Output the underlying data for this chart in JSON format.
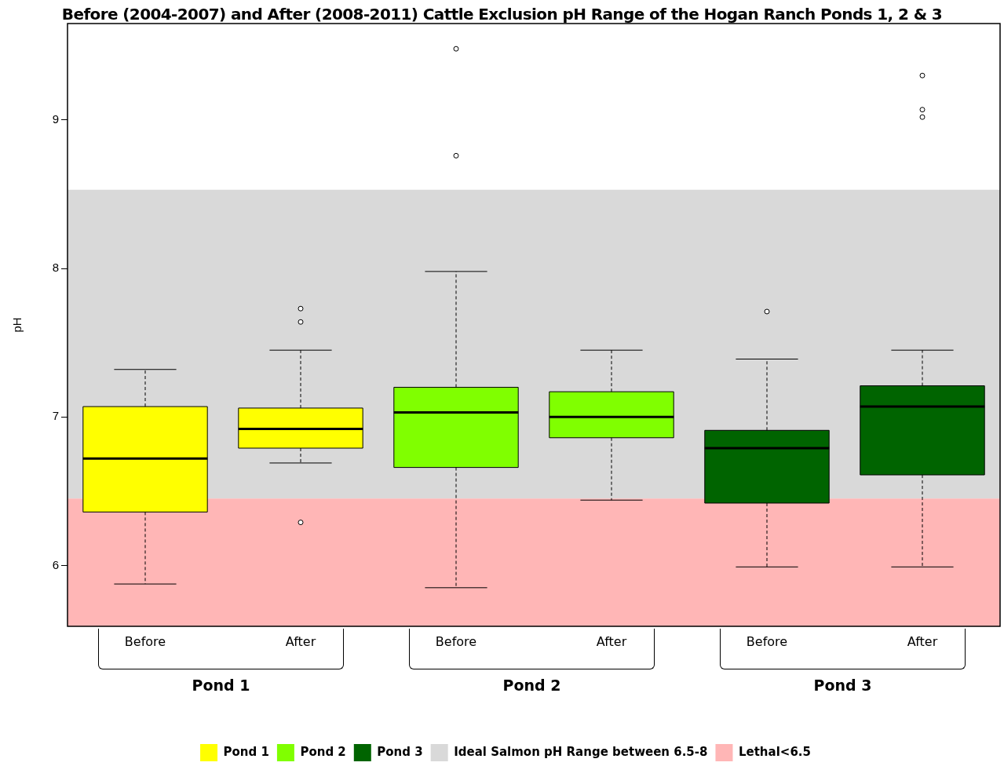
{
  "chart_data": {
    "type": "box",
    "title": "Before (2004-2007) and After (2008-2011) Cattle Exclusion pH Range of the Hogan Ranch Ponds 1, 2 & 3",
    "ylabel": "pH",
    "categories": [
      "Before",
      "After",
      "Before",
      "After",
      "Before",
      "After"
    ],
    "annotations": [
      "Pond 1",
      "Pond 2",
      "Pond 3"
    ],
    "ylim": [
      5.59,
      9.65
    ],
    "yticks": [
      6,
      7,
      8,
      9
    ],
    "grid": false,
    "legend": "bottom",
    "bands": [
      {
        "axis": "y",
        "from": 6.45,
        "to": 8.53,
        "label": "Ideal Salmon pH Range between 6.5-8",
        "color": "#d9d9d9"
      },
      {
        "axis": "y",
        "from": 5.59,
        "to": 6.45,
        "label": "Lethal<6.5",
        "color": "#ffb6b6"
      }
    ],
    "series": [
      {
        "name": "Pond 1",
        "color": "#ffff00",
        "boxes": [
          {
            "low": 5.875,
            "q1": 6.36,
            "median": 6.72,
            "q3": 7.07,
            "high": 7.32
          },
          {
            "low": 6.69,
            "q1": 6.79,
            "median": 6.92,
            "q3": 7.06,
            "high": 7.45,
            "outliers": [
              7.73,
              7.64,
              6.29
            ]
          },
          null,
          null,
          null,
          null
        ]
      },
      {
        "name": "Pond 2",
        "color": "#80ff00",
        "boxes": [
          null,
          null,
          {
            "low": 5.85,
            "q1": 6.66,
            "median": 7.03,
            "q3": 7.2,
            "high": 7.98,
            "outliers": [
              9.48,
              8.76
            ]
          },
          {
            "low": 6.44,
            "q1": 6.86,
            "median": 7.0,
            "q3": 7.17,
            "high": 7.45
          },
          null,
          null
        ]
      },
      {
        "name": "Pond 3",
        "color": "#006400",
        "boxes": [
          null,
          null,
          null,
          null,
          {
            "low": 5.99,
            "q1": 6.42,
            "median": 6.79,
            "q3": 6.91,
            "high": 7.39,
            "outliers": [
              7.71
            ]
          },
          {
            "low": 5.99,
            "q1": 6.61,
            "median": 7.07,
            "q3": 7.21,
            "high": 7.45,
            "outliers": [
              9.3,
              9.07,
              9.02
            ]
          }
        ]
      }
    ]
  }
}
